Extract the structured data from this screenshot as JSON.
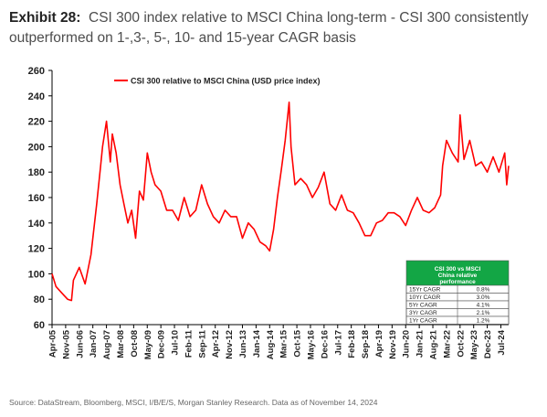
{
  "header": {
    "exhibit": "Exhibit 28:",
    "title": "CSI 300 index relative to MSCI China long-term - CSI 300 consistently outperformed on 1-,3-, 5-, 10- and 15-year CAGR basis"
  },
  "source": "Source: DataStream, Bloomberg, MSCI, I/B/E/S, Morgan Stanley Research. Data as of November 14, 2024",
  "colors": {
    "series": "#ff0000",
    "box_header": "#13a645",
    "box_header_text": "#ffffff"
  },
  "chart_data": {
    "type": "line",
    "legend": "CSI 300 relative to MSCI China (USD price index)",
    "legend_position": "top-left",
    "grid": false,
    "ylim": [
      60,
      260
    ],
    "yticks": [
      60,
      80,
      100,
      120,
      140,
      160,
      180,
      200,
      220,
      240,
      260
    ],
    "xlim": [
      "2005-04",
      "2024-11"
    ],
    "xticks": [
      "Apr-05",
      "Nov-05",
      "Jun-06",
      "Jan-07",
      "Aug-07",
      "Mar-08",
      "Oct-08",
      "May-09",
      "Dec-09",
      "Jul-10",
      "Feb-11",
      "Sep-11",
      "Apr-12",
      "Nov-12",
      "Jun-13",
      "Jan-14",
      "Aug-14",
      "Mar-15",
      "Oct-15",
      "May-16",
      "Dec-16",
      "Jul-17",
      "Feb-18",
      "Sep-18",
      "Apr-19",
      "Nov-19",
      "Jun-20",
      "Jan-21",
      "Aug-21",
      "Mar-22",
      "Oct-22",
      "May-23",
      "Dec-23",
      "Jul-24"
    ],
    "series": [
      {
        "name": "CSI 300 relative to MSCI China (USD price index)",
        "x": [
          "2005-04",
          "2005-06",
          "2005-09",
          "2005-12",
          "2006-02",
          "2006-03",
          "2006-06",
          "2006-09",
          "2006-12",
          "2007-03",
          "2007-05",
          "2007-06",
          "2007-08",
          "2007-10",
          "2007-11",
          "2008-01",
          "2008-03",
          "2008-05",
          "2008-07",
          "2008-09",
          "2008-11",
          "2009-01",
          "2009-03",
          "2009-05",
          "2009-07",
          "2009-09",
          "2009-12",
          "2010-03",
          "2010-06",
          "2010-09",
          "2010-12",
          "2011-03",
          "2011-06",
          "2011-09",
          "2011-12",
          "2012-03",
          "2012-06",
          "2012-09",
          "2012-12",
          "2013-03",
          "2013-06",
          "2013-09",
          "2013-12",
          "2014-03",
          "2014-06",
          "2014-08",
          "2014-10",
          "2014-12",
          "2015-02",
          "2015-04",
          "2015-06",
          "2015-07",
          "2015-09",
          "2015-12",
          "2016-03",
          "2016-06",
          "2016-09",
          "2016-12",
          "2017-03",
          "2017-06",
          "2017-09",
          "2017-12",
          "2018-03",
          "2018-06",
          "2018-09",
          "2018-12",
          "2019-03",
          "2019-06",
          "2019-09",
          "2019-12",
          "2020-03",
          "2020-06",
          "2020-09",
          "2020-12",
          "2021-03",
          "2021-06",
          "2021-09",
          "2021-12",
          "2022-01",
          "2022-03",
          "2022-06",
          "2022-09",
          "2022-10",
          "2022-12",
          "2023-03",
          "2023-06",
          "2023-09",
          "2023-12",
          "2024-03",
          "2024-06",
          "2024-09",
          "2024-10",
          "2024-11"
        ],
        "values": [
          100,
          90,
          85,
          80,
          79,
          95,
          105,
          92,
          115,
          155,
          185,
          200,
          220,
          188,
          210,
          195,
          170,
          155,
          140,
          150,
          128,
          165,
          158,
          195,
          180,
          170,
          165,
          150,
          150,
          142,
          160,
          145,
          150,
          170,
          155,
          145,
          140,
          150,
          145,
          145,
          128,
          140,
          135,
          125,
          122,
          118,
          135,
          160,
          182,
          205,
          235,
          200,
          170,
          175,
          170,
          160,
          168,
          180,
          155,
          150,
          162,
          150,
          148,
          140,
          130,
          130,
          140,
          142,
          148,
          148,
          145,
          138,
          150,
          160,
          150,
          148,
          152,
          162,
          185,
          205,
          195,
          188,
          225,
          190,
          205,
          185,
          188,
          180,
          192,
          180,
          195,
          170,
          185
        ]
      }
    ],
    "table": {
      "header": "CSI 300 vs MSCI China relative performance",
      "rows": [
        {
          "label": "15Yr CAGR",
          "value": "0.8%"
        },
        {
          "label": "10Yr CAGR",
          "value": "3.0%"
        },
        {
          "label": "5Yr CAGR",
          "value": "4.1%"
        },
        {
          "label": "3Yr CAGR",
          "value": "2.1%"
        },
        {
          "label": "1Yr CAGR",
          "value": "1.2%"
        }
      ]
    }
  }
}
